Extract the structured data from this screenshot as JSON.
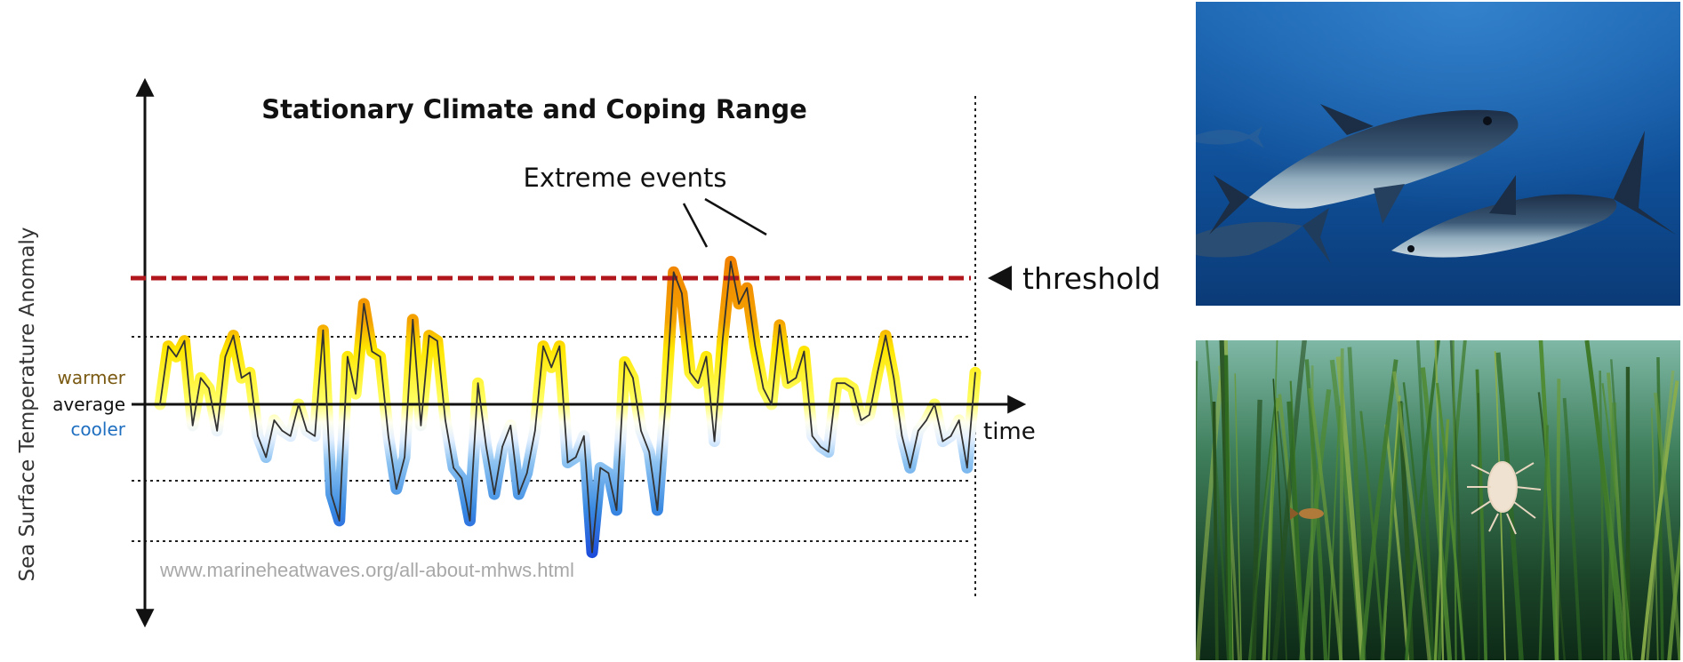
{
  "chart_data": {
    "type": "line",
    "title": "Stationary Climate and Coping Range",
    "ylabel": "Sea Surface Temperature Anomaly",
    "xlabel": "time",
    "y_side_labels": {
      "warmer": "warmer",
      "average": "average",
      "cooler": "cooler"
    },
    "annotation": "Extreme events",
    "threshold_label": "threshold",
    "threshold": 2.1,
    "coping_range": [
      1.1,
      -1.25
    ],
    "lower_band": -2.25,
    "ylim": [
      -3.6,
      5.5
    ],
    "xlim": [
      0,
      100
    ],
    "grid": false,
    "series": [
      {
        "x": [
          0,
          1,
          2,
          3,
          4,
          5,
          6,
          7,
          8,
          9,
          10,
          11,
          12,
          13,
          14,
          15,
          16,
          17,
          18,
          19,
          20,
          21,
          22,
          23,
          24,
          25,
          26,
          27,
          28,
          29,
          30,
          31,
          32,
          33,
          34,
          35,
          36,
          37,
          38,
          39,
          40,
          41,
          42,
          43,
          44,
          45,
          46,
          47,
          48,
          49,
          50,
          51,
          52,
          53,
          54,
          55,
          56,
          57,
          58,
          59,
          60,
          61,
          62,
          63,
          64,
          65,
          66,
          67,
          68,
          69,
          70,
          71,
          72,
          73,
          74,
          75,
          76,
          77,
          78,
          79,
          80,
          81,
          82,
          83,
          84,
          85,
          86,
          87,
          88,
          89,
          90,
          91,
          92,
          93,
          94,
          95,
          96,
          97,
          98,
          99,
          100
        ],
        "values": [
          0.0,
          1.1,
          0.9,
          1.2,
          -0.4,
          0.5,
          0.3,
          -0.5,
          0.9,
          1.3,
          0.5,
          0.6,
          -0.6,
          -1.0,
          -0.3,
          -0.5,
          -0.6,
          0.0,
          -0.5,
          -0.6,
          1.4,
          -1.7,
          -2.2,
          0.9,
          0.2,
          1.9,
          1.0,
          0.9,
          -0.6,
          -1.6,
          -1.0,
          1.6,
          -0.4,
          1.3,
          1.2,
          -0.3,
          -1.2,
          -1.4,
          -2.2,
          0.4,
          -0.8,
          -1.7,
          -0.8,
          -0.4,
          -1.7,
          -1.3,
          -0.5,
          1.1,
          0.7,
          1.1,
          -1.1,
          -1.0,
          -0.6,
          -2.8,
          -1.2,
          -1.3,
          -2.0,
          0.8,
          0.5,
          -0.5,
          -0.9,
          -2.0,
          0.0,
          2.5,
          2.1,
          0.6,
          0.4,
          0.9,
          -0.7,
          1.2,
          2.7,
          1.9,
          2.2,
          1.1,
          0.3,
          0.0,
          1.5,
          0.4,
          0.5,
          1.0,
          -0.6,
          -0.8,
          -0.9,
          0.4,
          0.4,
          0.3,
          -0.3,
          -0.2,
          0.6,
          1.3,
          0.5,
          -0.6,
          -1.2,
          -0.5,
          -0.3,
          0.0,
          -0.7,
          -0.6,
          -0.3,
          -1.2,
          0.6
        ]
      }
    ]
  },
  "url_text": "www.marineheatwaves.org/all-about-mhws.html",
  "photos": [
    {
      "subject": "bluefin-tuna",
      "colors": {
        "water_top": "#1a63b0",
        "water_bottom": "#0b3b77",
        "fish_body": "#3c5a78",
        "fish_belly": "#a9bfcc"
      }
    },
    {
      "subject": "seagrass-meadow",
      "colors": {
        "water_top": "#7fb8a6",
        "water_bottom": "#0d2a17",
        "grass": "#3f7a2a"
      }
    }
  ],
  "colors": {
    "threshold": "#b0161b",
    "line": "#333333",
    "warmer_label": "#7a5a12",
    "cooler_label": "#1f6fc0",
    "average_label": "#111111",
    "url": "#a8a8a8"
  }
}
